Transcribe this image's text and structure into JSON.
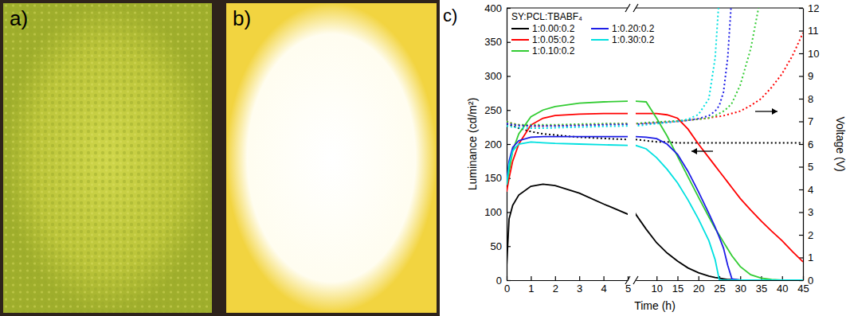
{
  "panels": [
    {
      "label": "a)"
    },
    {
      "label": "b)"
    }
  ],
  "chart_data": {
    "type": "line",
    "label": "c)",
    "legend_title": "SY:PCL:TBABF₄",
    "legend": "upper left",
    "xlabel": "Time (h)",
    "ylabel": "Luminance (cd/m²)",
    "y2label": "Voltage (V)",
    "x": [
      0,
      0.1,
      0.25,
      0.5,
      1,
      1.5,
      2,
      3,
      4,
      5,
      7.5,
      10,
      12.5,
      15,
      17.5,
      20,
      22.5,
      24,
      25,
      26,
      27,
      28,
      30,
      32.5,
      35,
      37.5,
      40,
      42.5,
      45
    ],
    "xlim": [
      0,
      45
    ],
    "axis_break": 5,
    "xticks": [
      0,
      1,
      2,
      3,
      4,
      5,
      10,
      15,
      20,
      25,
      30,
      35,
      40,
      45
    ],
    "ylim": [
      0,
      400
    ],
    "yticks": [
      0,
      50,
      100,
      150,
      200,
      250,
      300,
      350,
      400
    ],
    "y2lim": [
      0,
      12
    ],
    "y2ticks": [
      0,
      1,
      2,
      3,
      4,
      5,
      6,
      7,
      8,
      9,
      10,
      11,
      12
    ],
    "series": [
      {
        "name": "1:0.00:0.2",
        "color": "#000000",
        "values": [
          20,
          90,
          110,
          125,
          138,
          141,
          139,
          128,
          112,
          97,
          75,
          55,
          40,
          28,
          18,
          11,
          6,
          4,
          3,
          2,
          1,
          1,
          0,
          0,
          0,
          0,
          0,
          0,
          0
        ],
        "voltage": [
          6.9,
          6.85,
          6.8,
          6.7,
          6.55,
          6.45,
          6.4,
          6.3,
          6.25,
          6.2,
          6.15,
          6.1,
          6.1,
          6.05,
          6.05,
          6.05,
          6.05,
          6.05,
          6.05,
          6.05,
          6.05,
          6.05,
          6.05,
          6.05,
          6.05,
          6.05,
          6.05,
          6.05,
          6.05
        ]
      },
      {
        "name": "1:0.05:0.2",
        "color": "#ff0000",
        "values": [
          130,
          150,
          175,
          200,
          228,
          238,
          242,
          244,
          245,
          245,
          245,
          245,
          243,
          238,
          222,
          200,
          180,
          168,
          160,
          152,
          144,
          136,
          120,
          103,
          87,
          72,
          58,
          42,
          27
        ],
        "voltage": [
          7.0,
          6.95,
          6.9,
          6.85,
          6.8,
          6.8,
          6.82,
          6.85,
          6.88,
          6.9,
          6.92,
          6.95,
          6.98,
          7.0,
          7.05,
          7.1,
          7.15,
          7.2,
          7.22,
          7.25,
          7.3,
          7.35,
          7.45,
          7.7,
          8.0,
          8.5,
          9.1,
          9.9,
          10.9
        ]
      },
      {
        "name": "1:0.10:0.2",
        "color": "#33cc33",
        "values": [
          140,
          160,
          190,
          215,
          240,
          250,
          255,
          260,
          262,
          263,
          262,
          238,
          212,
          182,
          152,
          122,
          93,
          76,
          66,
          56,
          46,
          36,
          20,
          8,
          3,
          1,
          0,
          0,
          0
        ],
        "voltage": [
          7.0,
          6.95,
          6.9,
          6.85,
          6.85,
          6.85,
          6.85,
          6.88,
          6.9,
          6.9,
          6.95,
          6.97,
          7.0,
          7.02,
          7.05,
          7.1,
          7.15,
          7.25,
          7.35,
          7.45,
          7.6,
          7.8,
          8.6,
          10.2,
          12.6,
          null,
          null,
          null,
          null
        ]
      },
      {
        "name": "1:0.20:0.2",
        "color": "#1e1ee6",
        "values": [
          145,
          175,
          195,
          205,
          210,
          211,
          211,
          211,
          211,
          211,
          210,
          208,
          200,
          185,
          160,
          130,
          98,
          78,
          63,
          47,
          22,
          2,
          0,
          0,
          0,
          0,
          0,
          0,
          0
        ],
        "voltage": [
          6.9,
          6.88,
          6.85,
          6.82,
          6.8,
          6.8,
          6.8,
          6.82,
          6.85,
          6.87,
          6.9,
          6.93,
          6.96,
          7.0,
          7.05,
          7.12,
          7.25,
          7.45,
          7.7,
          8.3,
          9.8,
          12.6,
          null,
          null,
          null,
          null,
          null,
          null,
          null
        ]
      },
      {
        "name": "1:0.30:0.2",
        "color": "#00e0e0",
        "values": [
          140,
          170,
          190,
          200,
          203,
          202,
          201,
          200,
          199,
          198,
          193,
          180,
          163,
          143,
          118,
          90,
          58,
          30,
          0,
          0,
          0,
          0,
          0,
          0,
          0,
          0,
          0,
          0,
          0
        ],
        "voltage": [
          6.8,
          6.78,
          6.75,
          6.72,
          6.7,
          6.7,
          6.72,
          6.75,
          6.78,
          6.8,
          6.85,
          6.9,
          6.95,
          7.0,
          7.1,
          7.3,
          8.0,
          9.8,
          12.6,
          null,
          null,
          null,
          null,
          null,
          null,
          null,
          null,
          null,
          null
        ]
      }
    ]
  }
}
